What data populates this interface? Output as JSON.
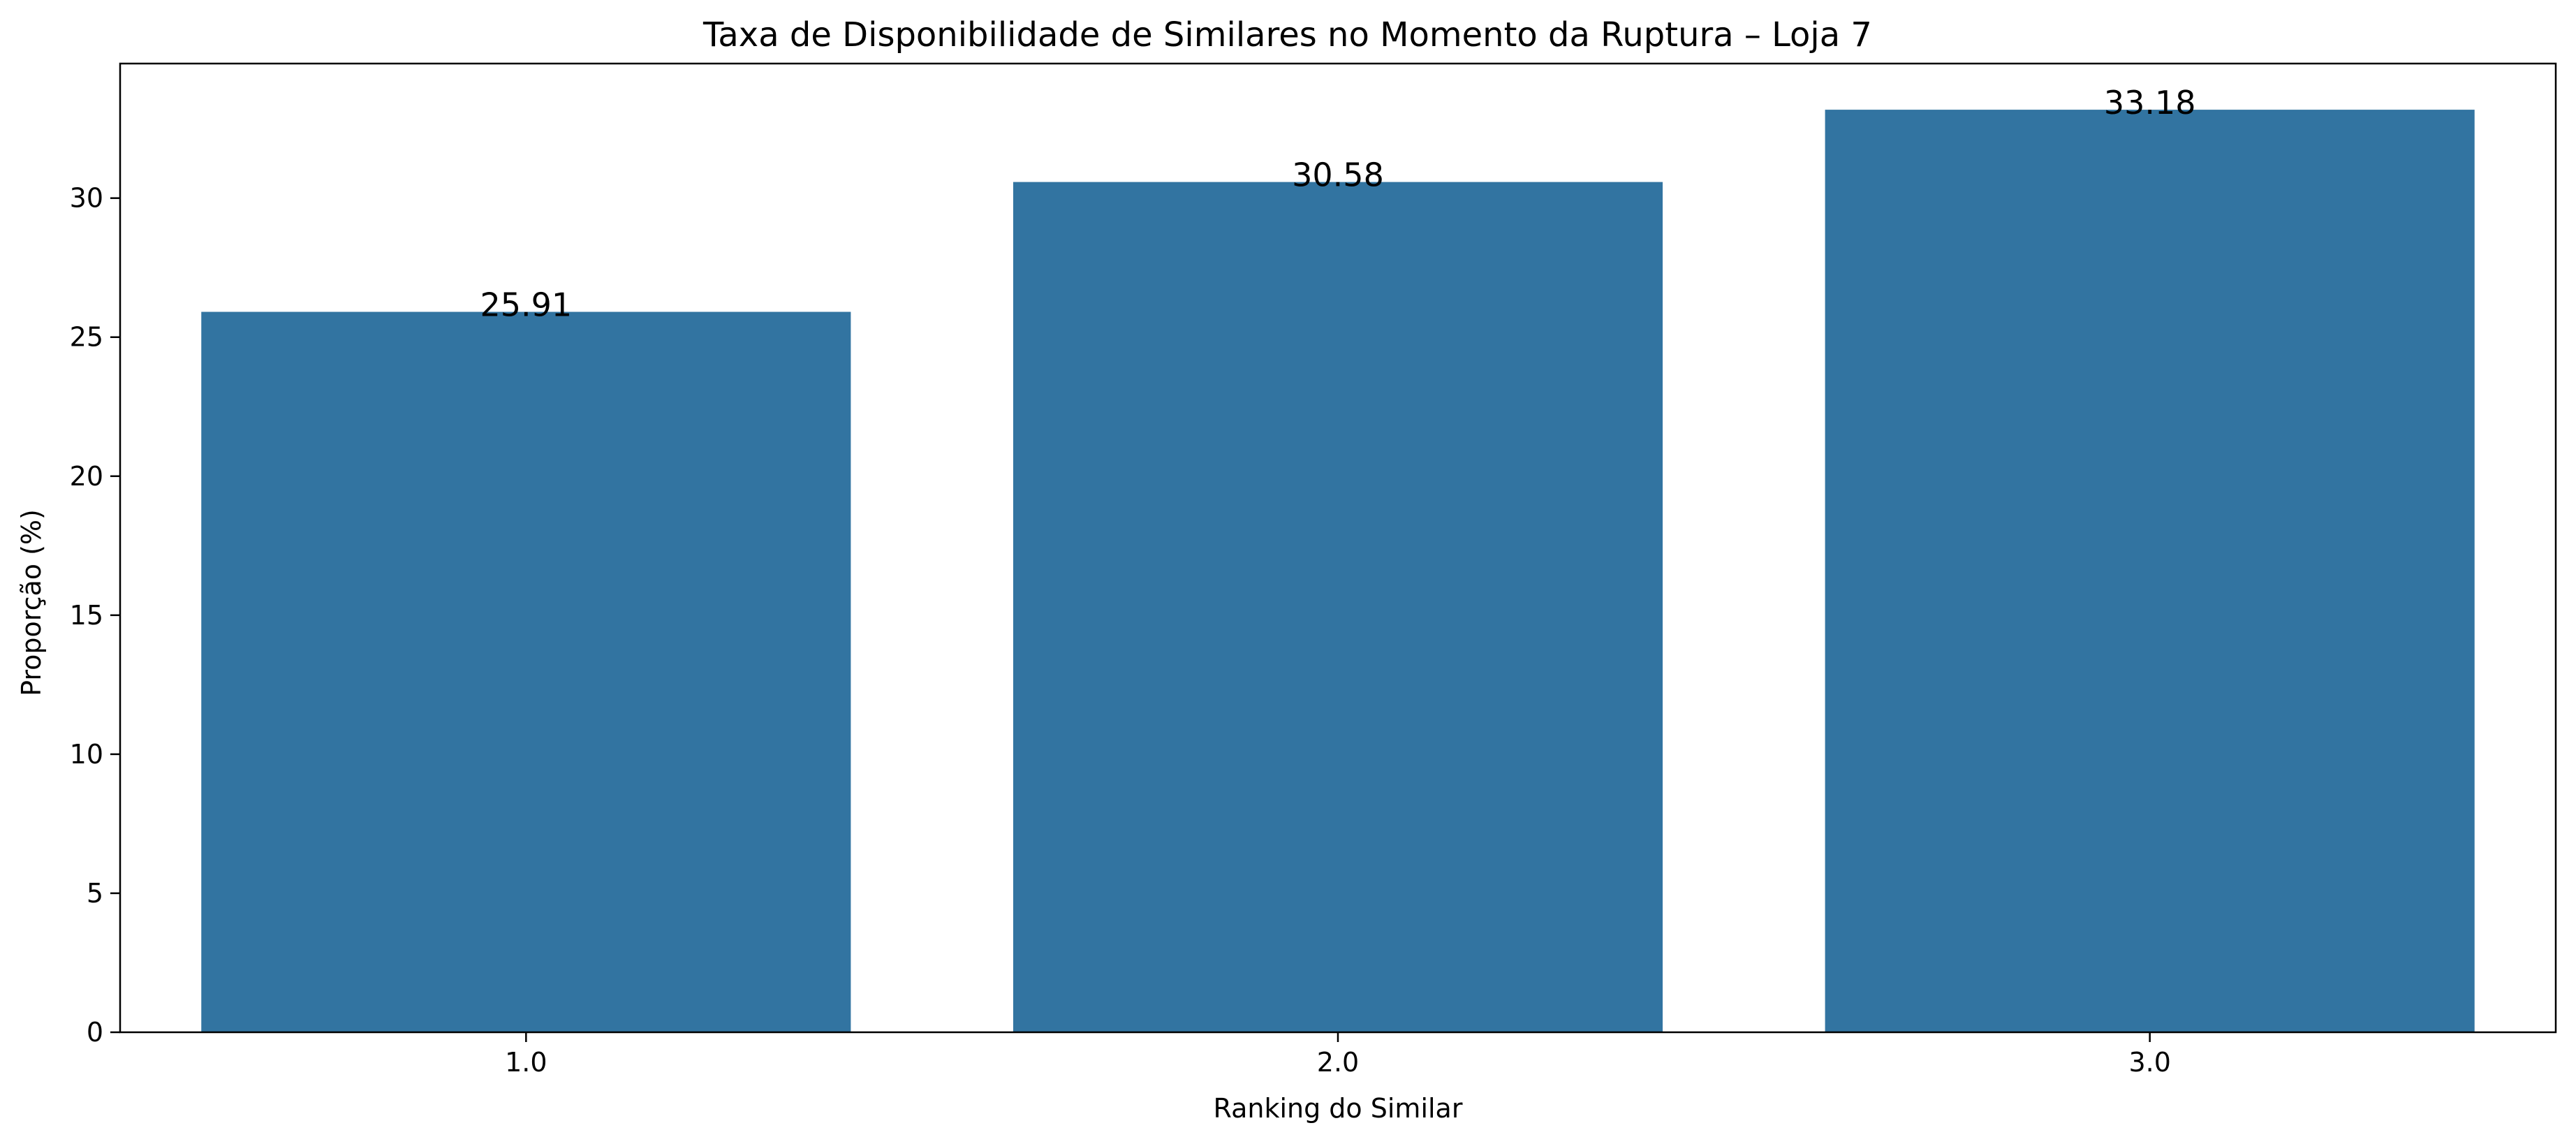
{
  "chart_data": {
    "type": "bar",
    "title": "Taxa de Disponibilidade de Similares no Momento da Ruptura – Loja 7",
    "xlabel": "Ranking do Similar",
    "ylabel": "Proporção (%)",
    "categories": [
      "1.0",
      "2.0",
      "3.0"
    ],
    "values": [
      25.91,
      30.58,
      33.18
    ],
    "data_labels": [
      "25.91",
      "30.58",
      "33.18"
    ],
    "yticks": [
      0,
      5,
      10,
      15,
      20,
      25,
      30
    ],
    "ylim": [
      0,
      34.84
    ],
    "grid": false,
    "legend": "none",
    "bar_color": "#3274a1"
  }
}
